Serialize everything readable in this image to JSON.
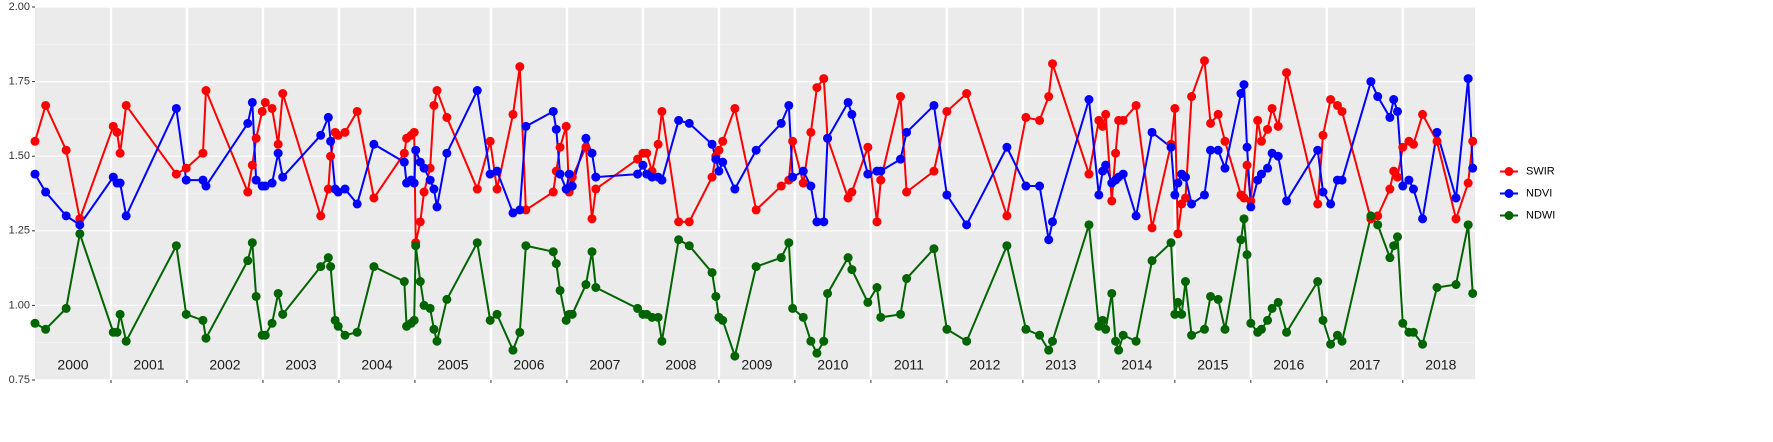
{
  "chart_data": {
    "type": "line",
    "x": [
      2000.0,
      2000.14,
      2000.41,
      2000.59,
      2001.03,
      2001.08,
      2001.12,
      2001.2,
      2001.86,
      2001.99,
      2002.21,
      2002.25,
      2002.8,
      2002.86,
      2002.91,
      2002.99,
      2003.03,
      2003.12,
      2003.2,
      2003.26,
      2003.76,
      2003.86,
      2003.89,
      2003.95,
      2003.99,
      2004.08,
      2004.24,
      2004.46,
      2004.86,
      2004.89,
      2004.95,
      2004.99,
      2005.01,
      2005.07,
      2005.12,
      2005.2,
      2005.25,
      2005.29,
      2005.42,
      2005.82,
      2005.99,
      2006.08,
      2006.29,
      2006.38,
      2006.46,
      2006.82,
      2006.86,
      2006.91,
      2006.99,
      2007.03,
      2007.07,
      2007.25,
      2007.33,
      2007.38,
      2007.93,
      2008.0,
      2008.05,
      2008.12,
      2008.2,
      2008.25,
      2008.47,
      2008.61,
      2008.91,
      2008.96,
      2009.0,
      2009.05,
      2009.21,
      2009.49,
      2009.82,
      2009.92,
      2009.97,
      2010.11,
      2010.21,
      2010.29,
      2010.38,
      2010.43,
      2010.7,
      2010.75,
      2010.96,
      2011.08,
      2011.13,
      2011.39,
      2011.47,
      2011.83,
      2012.0,
      2012.26,
      2012.79,
      2013.04,
      2013.22,
      2013.34,
      2013.39,
      2013.87,
      2014.0,
      2014.05,
      2014.09,
      2014.17,
      2014.22,
      2014.26,
      2014.32,
      2014.49,
      2014.7,
      2014.95,
      2015.0,
      2015.04,
      2015.09,
      2015.14,
      2015.22,
      2015.39,
      2015.47,
      2015.57,
      2015.66,
      2015.87,
      2015.91,
      2015.95,
      2016.0,
      2016.09,
      2016.14,
      2016.22,
      2016.28,
      2016.36,
      2016.47,
      2016.88,
      2016.95,
      2017.05,
      2017.14,
      2017.2,
      2017.58,
      2017.67,
      2017.83,
      2017.88,
      2017.93,
      2018.0,
      2018.08,
      2018.14,
      2018.26,
      2018.45,
      2018.7,
      2018.86,
      2018.92
    ],
    "series": [
      {
        "name": "SWIR",
        "color": "#ff0000",
        "values": [
          1.55,
          1.67,
          1.52,
          1.29,
          1.6,
          1.58,
          1.51,
          1.67,
          1.44,
          1.46,
          1.51,
          1.72,
          1.38,
          1.47,
          1.56,
          1.65,
          1.68,
          1.66,
          1.54,
          1.71,
          1.3,
          1.39,
          1.5,
          1.58,
          1.57,
          1.58,
          1.65,
          1.36,
          1.51,
          1.56,
          1.57,
          1.58,
          1.21,
          1.28,
          1.38,
          1.46,
          1.67,
          1.72,
          1.63,
          1.39,
          1.55,
          1.39,
          1.64,
          1.8,
          1.32,
          1.38,
          1.45,
          1.53,
          1.6,
          1.38,
          1.43,
          1.53,
          1.29,
          1.39,
          1.49,
          1.51,
          1.51,
          1.45,
          1.54,
          1.65,
          1.28,
          1.28,
          1.43,
          1.5,
          1.52,
          1.55,
          1.66,
          1.32,
          1.4,
          1.42,
          1.55,
          1.41,
          1.58,
          1.73,
          1.76,
          1.56,
          1.36,
          1.38,
          1.53,
          1.28,
          1.42,
          1.7,
          1.38,
          1.45,
          1.65,
          1.71,
          1.3,
          1.63,
          1.62,
          1.7,
          1.81,
          1.44,
          1.62,
          1.6,
          1.64,
          1.35,
          1.51,
          1.62,
          1.62,
          1.67,
          1.26,
          1.54,
          1.66,
          1.24,
          1.34,
          1.36,
          1.7,
          1.82,
          1.61,
          1.64,
          1.55,
          1.37,
          1.36,
          1.47,
          1.35,
          1.62,
          1.55,
          1.59,
          1.66,
          1.6,
          1.78,
          1.34,
          1.57,
          1.69,
          1.67,
          1.65,
          1.29,
          1.3,
          1.39,
          1.45,
          1.43,
          1.53,
          1.55,
          1.54,
          1.64,
          1.55,
          1.29,
          1.41,
          1.55
        ]
      },
      {
        "name": "NDVI",
        "color": "#0000ff",
        "values": [
          1.44,
          1.38,
          1.3,
          1.27,
          1.43,
          1.41,
          1.41,
          1.3,
          1.66,
          1.42,
          1.42,
          1.4,
          1.61,
          1.68,
          1.42,
          1.4,
          1.4,
          1.41,
          1.51,
          1.43,
          1.57,
          1.63,
          1.55,
          1.39,
          1.38,
          1.39,
          1.34,
          1.54,
          1.48,
          1.41,
          1.42,
          1.41,
          1.52,
          1.48,
          1.46,
          1.42,
          1.39,
          1.33,
          1.51,
          1.72,
          1.44,
          1.45,
          1.31,
          1.32,
          1.6,
          1.65,
          1.59,
          1.44,
          1.39,
          1.44,
          1.4,
          1.56,
          1.51,
          1.43,
          1.44,
          1.47,
          1.44,
          1.43,
          1.43,
          1.42,
          1.62,
          1.61,
          1.54,
          1.49,
          1.45,
          1.48,
          1.39,
          1.52,
          1.61,
          1.67,
          1.43,
          1.45,
          1.4,
          1.28,
          1.28,
          1.56,
          1.68,
          1.64,
          1.44,
          1.45,
          1.45,
          1.49,
          1.58,
          1.67,
          1.37,
          1.27,
          1.53,
          1.4,
          1.4,
          1.22,
          1.28,
          1.69,
          1.37,
          1.45,
          1.47,
          1.41,
          1.42,
          1.43,
          1.44,
          1.3,
          1.58,
          1.53,
          1.37,
          1.41,
          1.44,
          1.43,
          1.34,
          1.37,
          1.52,
          1.52,
          1.46,
          1.71,
          1.74,
          1.53,
          1.33,
          1.42,
          1.44,
          1.46,
          1.51,
          1.5,
          1.35,
          1.52,
          1.38,
          1.34,
          1.42,
          1.42,
          1.75,
          1.7,
          1.63,
          1.69,
          1.65,
          1.4,
          1.42,
          1.39,
          1.29,
          1.58,
          1.36,
          1.76,
          1.46
        ]
      },
      {
        "name": "NDWI",
        "color": "#006400",
        "values": [
          0.94,
          0.92,
          0.99,
          1.24,
          0.91,
          0.91,
          0.97,
          0.88,
          1.2,
          0.97,
          0.95,
          0.89,
          1.15,
          1.21,
          1.03,
          0.9,
          0.9,
          0.94,
          1.04,
          0.97,
          1.13,
          1.16,
          1.13,
          0.95,
          0.93,
          0.9,
          0.91,
          1.13,
          1.08,
          0.93,
          0.94,
          0.95,
          1.2,
          1.08,
          1.0,
          0.99,
          0.92,
          0.88,
          1.02,
          1.21,
          0.95,
          0.97,
          0.85,
          0.91,
          1.2,
          1.18,
          1.14,
          1.05,
          0.95,
          0.97,
          0.97,
          1.07,
          1.18,
          1.06,
          0.99,
          0.97,
          0.97,
          0.96,
          0.96,
          0.88,
          1.22,
          1.2,
          1.11,
          1.03,
          0.96,
          0.95,
          0.83,
          1.13,
          1.16,
          1.21,
          0.99,
          0.96,
          0.88,
          0.84,
          0.88,
          1.04,
          1.16,
          1.12,
          1.01,
          1.06,
          0.96,
          0.97,
          1.09,
          1.19,
          0.92,
          0.88,
          1.2,
          0.92,
          0.9,
          0.85,
          0.88,
          1.27,
          0.93,
          0.95,
          0.92,
          1.04,
          0.88,
          0.85,
          0.9,
          0.88,
          1.15,
          1.21,
          0.97,
          1.01,
          0.97,
          1.08,
          0.9,
          0.92,
          1.03,
          1.02,
          0.92,
          1.22,
          1.29,
          1.17,
          0.94,
          0.91,
          0.92,
          0.95,
          0.99,
          1.01,
          0.91,
          1.08,
          0.95,
          0.87,
          0.9,
          0.88,
          1.3,
          1.27,
          1.16,
          1.2,
          1.23,
          0.94,
          0.91,
          0.91,
          0.87,
          1.06,
          1.07,
          1.27,
          1.04
        ]
      }
    ],
    "xlim": [
      2000,
      2018.95
    ],
    "xticks": [
      2001,
      2002,
      2003,
      2004,
      2005,
      2006,
      2007,
      2008,
      2009,
      2010,
      2011,
      2012,
      2013,
      2014,
      2015,
      2016,
      2017,
      2018
    ],
    "year_labels": [
      "2000",
      "2001",
      "2002",
      "2003",
      "2004",
      "2005",
      "2006",
      "2007",
      "2008",
      "2009",
      "2010",
      "2011",
      "2012",
      "2013",
      "2014",
      "2015",
      "2016",
      "2017",
      "2018"
    ],
    "ylim": [
      0.75,
      2.0
    ],
    "yticks": [
      {
        "value": 0.75,
        "label": "0.75"
      },
      {
        "value": 1.0,
        "label": "1.00"
      },
      {
        "value": 1.25,
        "label": "1.25"
      },
      {
        "value": 1.5,
        "label": "1.50"
      },
      {
        "value": 1.75,
        "label": "1.75"
      },
      {
        "value": 2.0,
        "label": "2.00"
      }
    ],
    "grid": true,
    "legend": "right"
  }
}
